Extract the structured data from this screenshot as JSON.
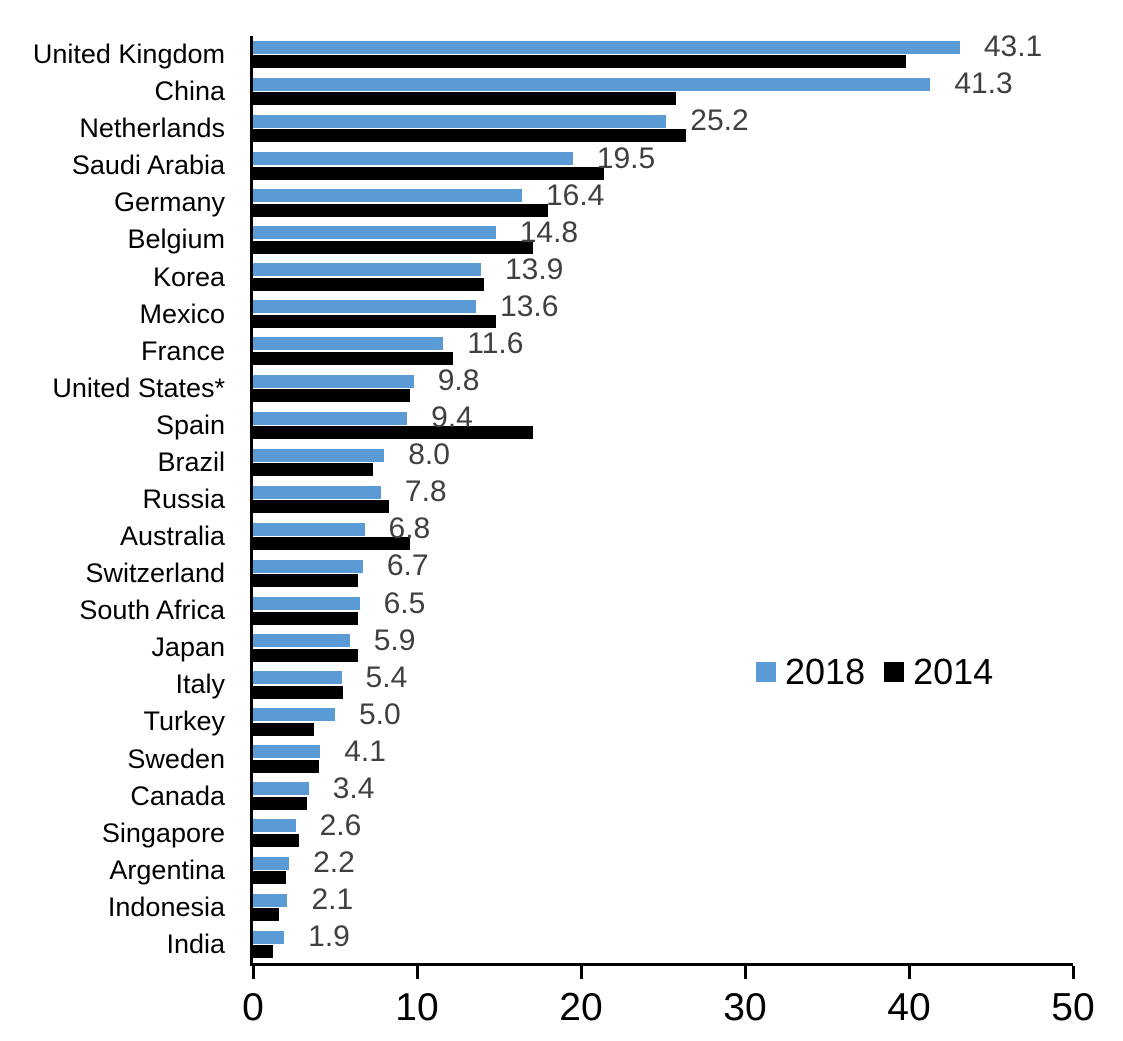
{
  "chart_data": {
    "type": "bar",
    "orientation": "horizontal",
    "title": "",
    "xlabel": "",
    "ylabel": "",
    "xlim": [
      0,
      50
    ],
    "x_ticks": [
      0,
      10,
      20,
      30,
      40,
      50
    ],
    "grid": false,
    "legend_position": "middle-right",
    "categories": [
      "United Kingdom",
      "China",
      "Netherlands",
      "Saudi Arabia",
      "Germany",
      "Belgium",
      "Korea",
      "Mexico",
      "France",
      "United States*",
      "Spain",
      "Brazil",
      "Russia",
      "Australia",
      "Switzerland",
      "South Africa",
      "Japan",
      "Italy",
      "Turkey",
      "Sweden",
      "Canada",
      "Singapore",
      "Argentina",
      "Indonesia",
      "India"
    ],
    "series": [
      {
        "name": "2018",
        "color": "#5B9BD5",
        "values": [
          43.1,
          41.3,
          25.2,
          19.5,
          16.4,
          14.8,
          13.9,
          13.6,
          11.6,
          9.8,
          9.4,
          8.0,
          7.8,
          6.8,
          6.7,
          6.5,
          5.9,
          5.4,
          5.0,
          4.1,
          3.4,
          2.6,
          2.2,
          2.1,
          1.9
        ],
        "data_labels": [
          "43.1",
          "41.3",
          "25.2",
          "19.5",
          "16.4",
          "14.8",
          "13.9",
          "13.6",
          "11.6",
          "9.8",
          "9.4",
          "8.0",
          "7.8",
          "6.8",
          "6.7",
          "6.5",
          "5.9",
          "5.4",
          "5.0",
          "4.1",
          "3.4",
          "2.6",
          "2.2",
          "2.1",
          "1.9"
        ]
      },
      {
        "name": "2014",
        "color": "#000000",
        "values": [
          39.8,
          25.8,
          26.4,
          21.4,
          18.0,
          17.1,
          14.1,
          14.8,
          12.2,
          9.6,
          17.1,
          7.3,
          8.3,
          9.6,
          6.4,
          6.4,
          6.4,
          5.5,
          3.7,
          4.0,
          3.3,
          2.8,
          2.0,
          1.6,
          1.2
        ]
      }
    ],
    "colors": {
      "axis": "#000000",
      "category_label": "#000000",
      "tick_label": "#000000",
      "value_label": "#404040",
      "background": "#ffffff"
    }
  }
}
